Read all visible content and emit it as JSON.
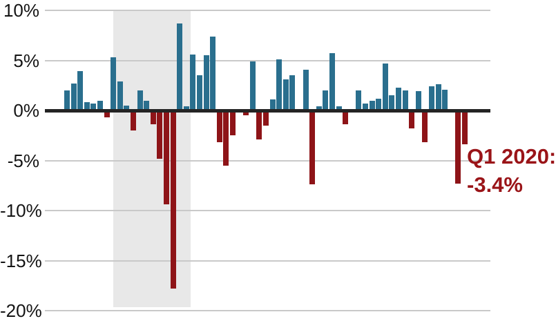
{
  "page": {
    "background_color": "#ffffff"
  },
  "chart_data": {
    "type": "bar",
    "title": "",
    "unit": "%",
    "values": [
      2.0,
      2.7,
      3.9,
      0.8,
      0.7,
      1.0,
      -0.7,
      5.3,
      2.9,
      0.5,
      -2.0,
      2.0,
      1.0,
      -1.4,
      -4.8,
      -9.4,
      -17.8,
      8.7,
      0.4,
      5.6,
      3.5,
      5.5,
      7.4,
      -3.2,
      -5.5,
      -2.5,
      0.0,
      -0.5,
      4.9,
      -2.9,
      -1.5,
      1.1,
      5.1,
      3.1,
      3.5,
      0.0,
      4.1,
      -7.4,
      0.4,
      2.0,
      5.7,
      0.4,
      -1.4,
      0.0,
      2.0,
      0.7,
      1.0,
      1.2,
      4.7,
      1.5,
      2.3,
      2.0,
      -1.8,
      1.9,
      -3.2,
      2.4,
      2.6,
      2.1,
      0.0,
      -7.3,
      -3.4
    ],
    "y_axis": {
      "ticks": [
        10,
        5,
        0,
        -5,
        -10,
        -15,
        -20
      ],
      "tick_labels": [
        "10%",
        "5%",
        "0%",
        "-5%",
        "-10%",
        "-15%",
        "-20%"
      ],
      "visible_range": [
        -20,
        10
      ]
    },
    "x_axis": {
      "tick_labels_visible": false
    },
    "grid": true,
    "legend": false,
    "colors": {
      "bar_positive": "#2a6f8e",
      "bar_negative": "#8e1418",
      "gridline": "#c9c9c9",
      "zero_axis": "#242424",
      "tick_label": "#141414",
      "shaded_region": "#e8e8e8",
      "annotation_text": "#9a1418"
    },
    "shaded_region": {
      "covers_bars_from": 8,
      "covers_bars_to": 19
    },
    "annotation": {
      "line1": "Q1 2020:",
      "line2": "-3.4%"
    }
  }
}
